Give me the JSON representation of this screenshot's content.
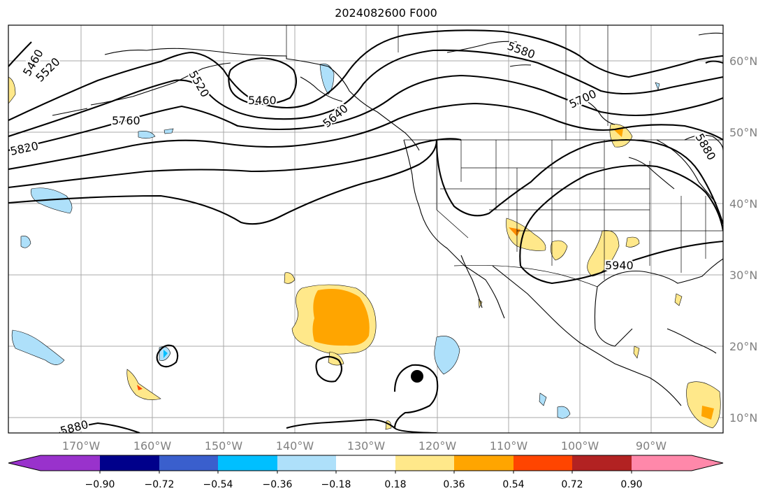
{
  "title": "2024082600 F000",
  "map": {
    "lon_ticks": [
      "170°W",
      "160°W",
      "150°W",
      "140°W",
      "130°W",
      "120°W",
      "110°W",
      "100°W",
      "90°W"
    ],
    "lat_ticks": [
      "60°N",
      "50°N",
      "40°N",
      "30°N",
      "20°N",
      "10°N"
    ],
    "contour_labels": [
      "5460",
      "5520",
      "5460",
      "5520",
      "5640",
      "5580",
      "5700",
      "5760",
      "5820",
      "5880",
      "5940",
      "5880"
    ],
    "shading_colors": {
      "neg_light": "#aee0fa",
      "neg_mid": "#00bfff",
      "pos_light": "#ffe88a",
      "pos_mid": "#ffa500",
      "pos_dark": "#ff4500"
    }
  },
  "colorbar": {
    "ticks": [
      "−0.90",
      "−0.72",
      "−0.54",
      "−0.36",
      "−0.18",
      "0.18",
      "0.36",
      "0.54",
      "0.72",
      "0.90"
    ],
    "colors": [
      "#9932cc",
      "#9932cc",
      "#00008b",
      "#3a5fcd",
      "#00bfff",
      "#aee0fa",
      "#ffffff",
      "#ffe88a",
      "#ffa500",
      "#ff4500",
      "#b22222",
      "#ff88aa",
      "#ff88aa"
    ]
  }
}
